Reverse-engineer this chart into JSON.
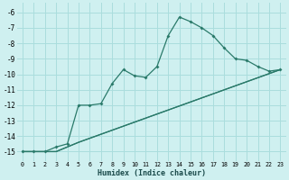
{
  "xlabel": "Humidex (Indice chaleur)",
  "bg_color": "#cff0f0",
  "grid_color": "#aadddd",
  "line_color": "#2a7a6a",
  "xlim": [
    -0.5,
    23.5
  ],
  "ylim": [
    -15.6,
    -5.4
  ],
  "yticks": [
    -15,
    -14,
    -13,
    -12,
    -11,
    -10,
    -9,
    -8,
    -7,
    -6
  ],
  "xticks": [
    0,
    1,
    2,
    3,
    4,
    5,
    6,
    7,
    8,
    9,
    10,
    11,
    12,
    13,
    14,
    15,
    16,
    17,
    18,
    19,
    20,
    21,
    22,
    23
  ],
  "line1_x": [
    0,
    1,
    2,
    3,
    4,
    5,
    6,
    7,
    8,
    9,
    10,
    11,
    12,
    13,
    14,
    15,
    16,
    17,
    18,
    19,
    20,
    21,
    22,
    23
  ],
  "line1_y": [
    -15,
    -15,
    -15,
    -14.7,
    -14.5,
    -12.0,
    -12.0,
    -11.9,
    -10.6,
    -9.7,
    -10.1,
    -10.2,
    -9.5,
    -7.5,
    -6.3,
    -6.6,
    -7.0,
    -7.5,
    -8.3,
    -9.0,
    -9.1,
    -9.5,
    -9.8,
    -9.7
  ],
  "line2_x": [
    0,
    1,
    3,
    5,
    23
  ],
  "line2_y": [
    -15,
    -15,
    -15,
    -14.4,
    -9.7
  ],
  "line3_x": [
    0,
    1,
    3,
    4,
    5,
    23
  ],
  "line3_y": [
    -15,
    -15,
    -15,
    -14.7,
    -14.4,
    -9.7
  ]
}
